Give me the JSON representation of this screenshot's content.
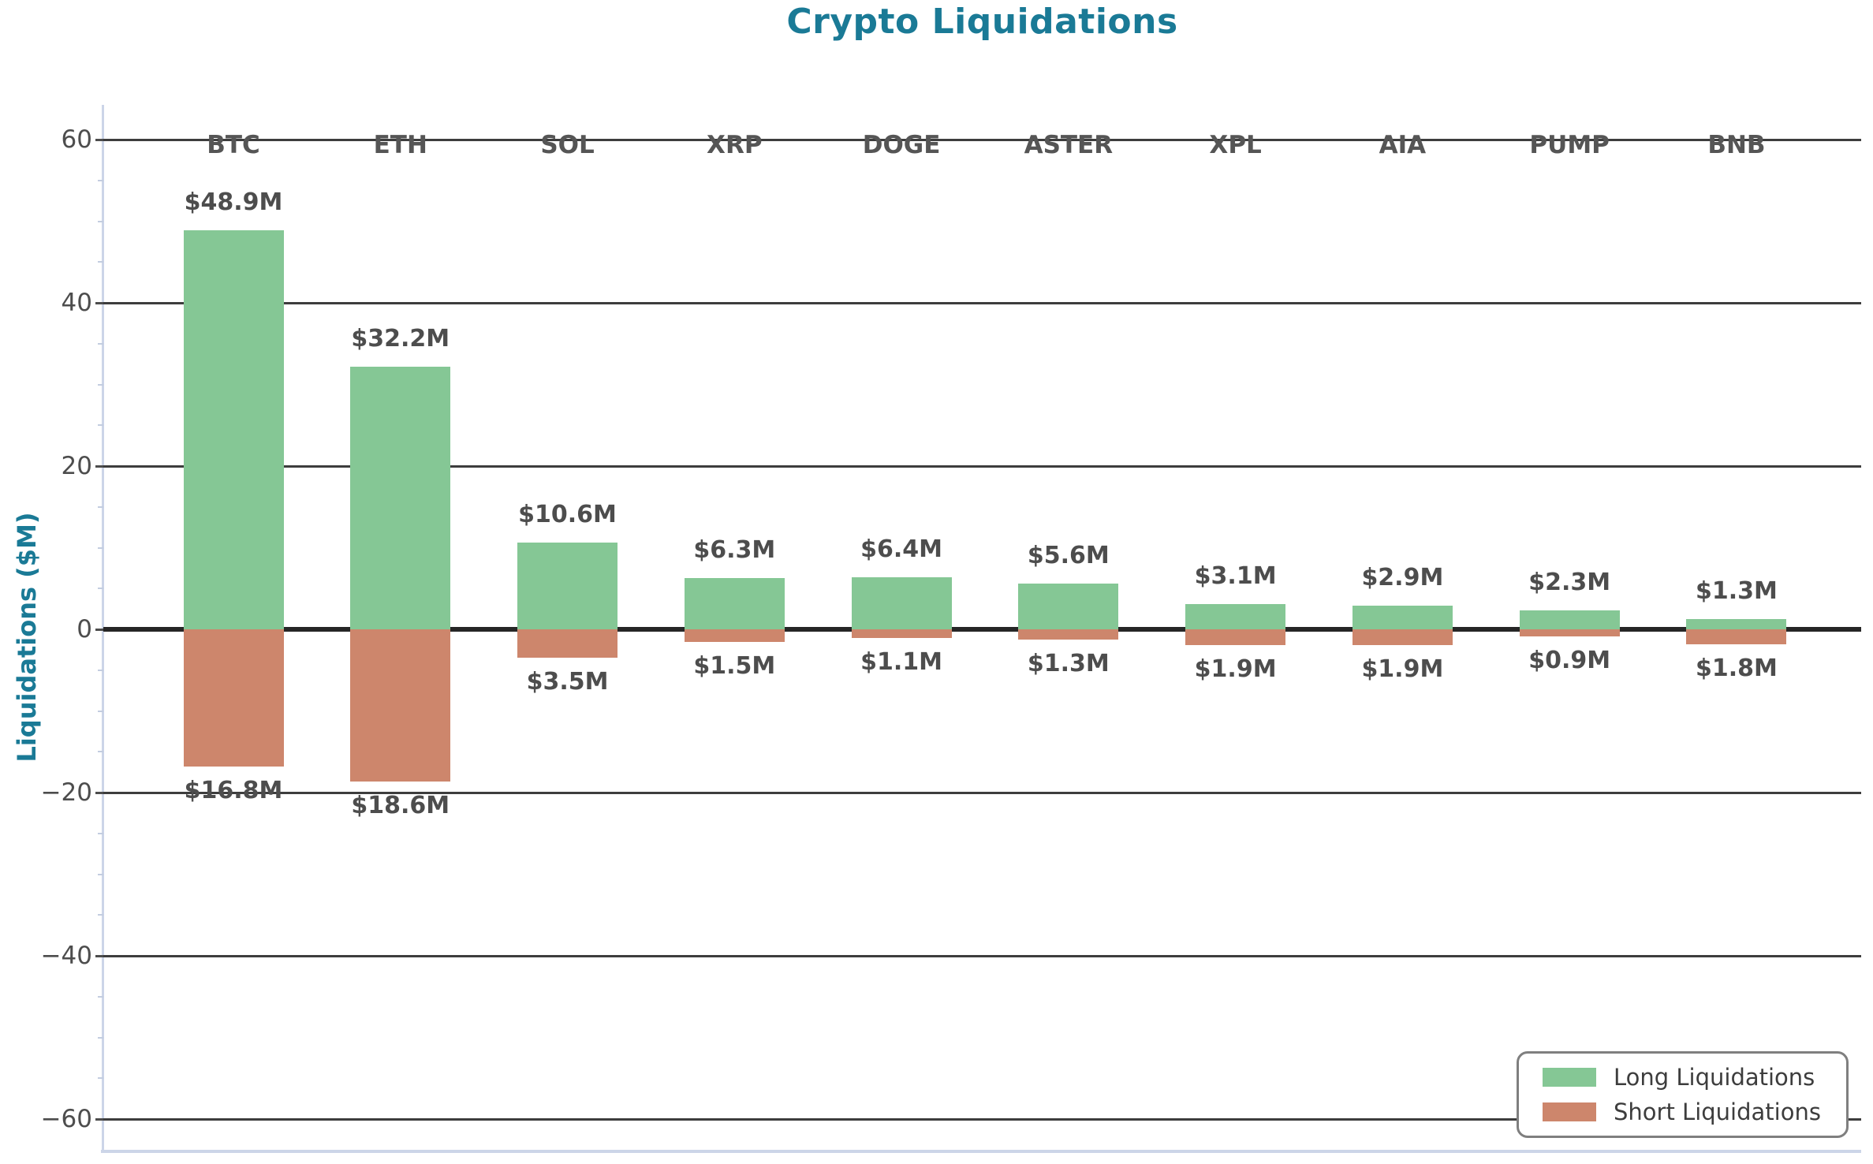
{
  "chart_data": {
    "type": "bar",
    "title": "Crypto Liquidations",
    "ylabel": "Liquidations ($M)",
    "xlabel": "",
    "categories": [
      "BTC",
      "ETH",
      "SOL",
      "XRP",
      "DOGE",
      "ASTER",
      "XPL",
      "AIA",
      "PUMP",
      "BNB"
    ],
    "series": [
      {
        "name": "Long Liquidations",
        "color": "#85c795",
        "values": [
          48.9,
          32.2,
          10.6,
          6.3,
          6.4,
          5.6,
          3.1,
          2.9,
          2.3,
          1.3
        ],
        "labels": [
          "$48.9M",
          "$32.2M",
          "$10.6M",
          "$6.3M",
          "$6.4M",
          "$5.6M",
          "$3.1M",
          "$2.9M",
          "$2.3M",
          "$1.3M"
        ]
      },
      {
        "name": "Short Liquidations",
        "color": "#cd866c",
        "values": [
          -16.8,
          -18.6,
          -3.5,
          -1.5,
          -1.1,
          -1.3,
          -1.9,
          -1.9,
          -0.9,
          -1.8
        ],
        "labels": [
          "$16.8M",
          "$18.6M",
          "$3.5M",
          "$1.5M",
          "$1.1M",
          "$1.3M",
          "$1.9M",
          "$1.9M",
          "$0.9M",
          "$1.8M"
        ]
      }
    ],
    "yticks": [
      60,
      40,
      20,
      0,
      -20,
      -40,
      -60
    ],
    "ytick_labels": [
      "60",
      "40",
      "20",
      "0",
      "−20",
      "−40",
      "−60"
    ],
    "ylim": [
      -64,
      64
    ],
    "grid": true,
    "legend_position": "lower right",
    "colors": {
      "title": "#1a7a96",
      "axis_label": "#1a7a96",
      "tick_label": "#4d4d4d",
      "category_label": "#555555",
      "value_label": "#4d4d4d",
      "grid": "#3d3d3d",
      "zero_line": "#262626",
      "spine": "#ccd5e8",
      "minor_tick": "#c3cde0",
      "legend_border": "#7f7f7f",
      "legend_text": "#3d3d3d",
      "long_bar": "#85c795",
      "short_bar": "#cd866c"
    }
  }
}
